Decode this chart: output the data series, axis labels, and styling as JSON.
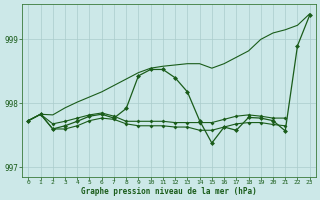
{
  "xlabel": "Graphe pression niveau de la mer (hPa)",
  "background_color": "#cce8e8",
  "grid_color": "#aacccc",
  "line_color": "#1a5c1a",
  "ylim": [
    996.85,
    999.55
  ],
  "yticks": [
    997,
    998,
    999
  ],
  "xlim": [
    -0.5,
    23.5
  ],
  "xticks": [
    0,
    1,
    2,
    3,
    4,
    5,
    6,
    7,
    8,
    9,
    10,
    11,
    12,
    13,
    14,
    15,
    16,
    17,
    18,
    19,
    20,
    21,
    22,
    23
  ],
  "line_trend": [
    997.73,
    997.83,
    997.82,
    997.93,
    998.02,
    998.1,
    998.18,
    998.28,
    998.38,
    998.48,
    998.55,
    998.58,
    998.6,
    998.62,
    998.62,
    998.55,
    998.62,
    998.72,
    998.82,
    999.0,
    999.1,
    999.15,
    999.22,
    999.4
  ],
  "line_mid1": [
    997.73,
    997.83,
    997.68,
    997.72,
    997.77,
    997.82,
    997.85,
    997.8,
    997.72,
    997.72,
    997.72,
    997.72,
    997.7,
    997.7,
    997.7,
    997.7,
    997.75,
    997.8,
    997.82,
    997.8,
    997.77,
    997.77,
    null,
    null
  ],
  "line_mid2": [
    997.73,
    997.83,
    997.6,
    997.6,
    997.65,
    997.73,
    997.77,
    997.75,
    997.68,
    997.65,
    997.65,
    997.65,
    997.63,
    997.63,
    997.58,
    997.58,
    997.63,
    997.68,
    997.7,
    997.7,
    997.67,
    997.65,
    null,
    null
  ],
  "line_main_x": [
    0,
    1,
    2,
    3,
    4,
    5,
    6,
    7,
    8,
    9,
    10,
    11,
    12,
    13,
    14,
    15,
    16,
    17,
    18,
    19,
    20,
    21,
    22,
    23
  ],
  "line_main_y": [
    997.73,
    997.83,
    997.6,
    997.65,
    997.72,
    997.8,
    997.83,
    997.77,
    997.92,
    998.43,
    998.53,
    998.53,
    998.4,
    998.18,
    997.73,
    997.38,
    997.63,
    997.58,
    997.78,
    997.77,
    997.73,
    997.57,
    998.9,
    999.38
  ]
}
